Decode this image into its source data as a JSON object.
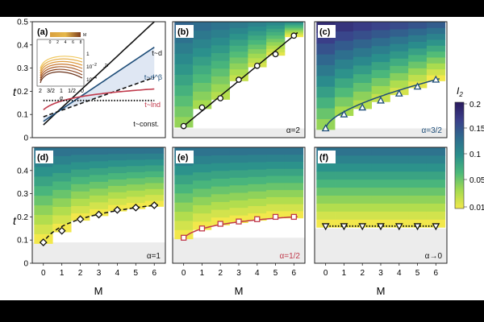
{
  "figure": {
    "y_label": "t",
    "x_label": "M",
    "colorbar": {
      "label": "I",
      "label_sub": "2",
      "ticks": [
        "0.2",
        "0.15",
        "0.1",
        "0.05",
        "0.01"
      ],
      "colors": [
        "#f2e84b",
        "#a6db4f",
        "#4cb97a",
        "#2a8f8c",
        "#2f6b8e",
        "#3b3f8a",
        "#2a1a5e"
      ]
    }
  },
  "chart_data": [
    {
      "panel": "(a)",
      "type": "line",
      "x": [
        0,
        6
      ],
      "ylim": [
        0,
        0.5
      ],
      "yticks": [
        "0",
        "0.1",
        "0.2",
        "0.3",
        "0.4",
        "0.5"
      ],
      "series": [
        {
          "name": "t~d",
          "x": [
            0,
            6
          ],
          "y": [
            0.055,
            0.5
          ],
          "color": "#111111",
          "style": "solid"
        },
        {
          "name": "t~d^β",
          "x": [
            0,
            6
          ],
          "y": [
            0.07,
            0.39
          ],
          "color": "#1f4e79",
          "style": "solid"
        },
        {
          "name": "",
          "x": [
            0,
            6
          ],
          "y": [
            0.09,
            0.26
          ],
          "color": "#111111",
          "style": "dashed"
        },
        {
          "name": "t~lnd",
          "x": [
            0,
            6
          ],
          "y": [
            0.12,
            0.21
          ],
          "color": "#c0394b",
          "style": "solid"
        },
        {
          "name": "t~const.",
          "x": [
            0,
            6
          ],
          "y": [
            0.16,
            0.16
          ],
          "color": "#111111",
          "style": "dotted"
        }
      ],
      "inset": {
        "x_label": "α",
        "y_label": "n",
        "y_label_sub": "I",
        "x_ticks": [
          "2",
          "3/2",
          "1",
          "1/2",
          "0"
        ],
        "y_ticks": [
          "1",
          "10",
          "10"
        ],
        "y_tick_sup": [
          "",
          "−2",
          "−4"
        ],
        "colorbar_ticks": [
          "0",
          "2",
          "4",
          "6",
          "8"
        ],
        "colorbar_label": "M"
      }
    },
    {
      "panel": "(b)",
      "type": "heatmap",
      "alpha_label": "α=2",
      "alpha_color": "#111111",
      "x": [
        0,
        1,
        2,
        3,
        4,
        5,
        6
      ],
      "y": [
        0.05,
        0.13,
        0.17,
        0.25,
        0.31,
        0.36,
        0.44
      ],
      "fit": "linear",
      "marker": "circle",
      "line_style": "solid",
      "line_color": "#111111",
      "gray_below": 0.04
    },
    {
      "panel": "(c)",
      "type": "heatmap",
      "alpha_label": "α=3/2",
      "alpha_color": "#1f4e79",
      "x": [
        0,
        1,
        2,
        3,
        4,
        5,
        6
      ],
      "y": [
        0.04,
        0.1,
        0.13,
        0.16,
        0.19,
        0.22,
        0.25
      ],
      "fit": "power",
      "marker": "triangle",
      "line_style": "solid",
      "line_color": "#1f4e79",
      "gray_below": 0.04
    },
    {
      "panel": "(d)",
      "type": "heatmap",
      "alpha_label": "α=1",
      "alpha_color": "#111111",
      "x": [
        0,
        1,
        2,
        3,
        4,
        5,
        6
      ],
      "y": [
        0.09,
        0.14,
        0.19,
        0.21,
        0.23,
        0.24,
        0.25
      ],
      "fit": "log",
      "marker": "diamond",
      "line_style": "dashed",
      "line_color": "#111111",
      "gray_below": 0.1
    },
    {
      "panel": "(e)",
      "type": "heatmap",
      "alpha_label": "α=1/2",
      "alpha_color": "#c0394b",
      "x": [
        0,
        1,
        2,
        3,
        4,
        5,
        6
      ],
      "y": [
        0.11,
        0.15,
        0.17,
        0.18,
        0.19,
        0.2,
        0.2
      ],
      "fit": "log",
      "marker": "square",
      "line_style": "solid",
      "line_color": "#c0394b",
      "gray_below": 0.11
    },
    {
      "panel": "(f)",
      "type": "heatmap",
      "alpha_label": "α→0",
      "alpha_color": "#111111",
      "x": [
        0,
        1,
        2,
        3,
        4,
        5,
        6
      ],
      "y": [
        0.16,
        0.16,
        0.16,
        0.16,
        0.16,
        0.16,
        0.16
      ],
      "fit": "const",
      "marker": "down-triangle",
      "line_style": "dotted",
      "line_color": "#111111",
      "gray_below": 0.15
    }
  ]
}
